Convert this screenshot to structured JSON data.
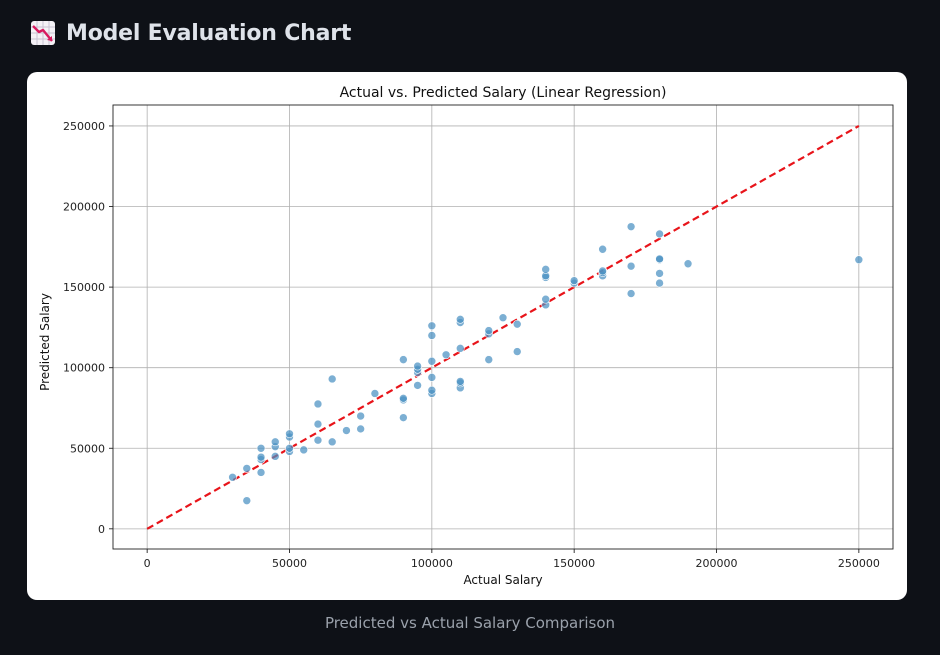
{
  "header": {
    "title": "Model Evaluation Chart",
    "icon": "chart-decreasing-icon"
  },
  "caption": "Predicted vs Actual Salary Comparison",
  "colors": {
    "page_background": "#0e1117",
    "card_background": "#ffffff",
    "points": "#4a90c2",
    "reference_line": "#e8141a",
    "grid": "#b0b0b0"
  },
  "chart_data": {
    "type": "scatter",
    "title": "Actual vs. Predicted Salary (Linear Regression)",
    "xlabel": "Actual Salary",
    "ylabel": "Predicted Salary",
    "xlim": [
      -12000,
      262000
    ],
    "ylim": [
      -12500,
      263000
    ],
    "xticks": [
      0,
      50000,
      100000,
      150000,
      200000,
      250000
    ],
    "yticks": [
      0,
      50000,
      100000,
      150000,
      200000,
      250000
    ],
    "grid": true,
    "reference_line": {
      "from": [
        0,
        0
      ],
      "to": [
        250000,
        250000
      ],
      "style": "dashed"
    },
    "points": [
      [
        30000,
        32000
      ],
      [
        35000,
        37500
      ],
      [
        35000,
        17500
      ],
      [
        40000,
        35000
      ],
      [
        40000,
        43000
      ],
      [
        40000,
        44500
      ],
      [
        40000,
        50000
      ],
      [
        45000,
        45000
      ],
      [
        45000,
        51000
      ],
      [
        45000,
        54000
      ],
      [
        50000,
        48000
      ],
      [
        50000,
        50000
      ],
      [
        50000,
        57000
      ],
      [
        50000,
        59000
      ],
      [
        55000,
        49000
      ],
      [
        60000,
        55000
      ],
      [
        60000,
        65000
      ],
      [
        60000,
        77500
      ],
      [
        65000,
        54000
      ],
      [
        65000,
        93000
      ],
      [
        70000,
        61000
      ],
      [
        75000,
        62000
      ],
      [
        75000,
        70000
      ],
      [
        80000,
        84000
      ],
      [
        90000,
        69000
      ],
      [
        90000,
        80000
      ],
      [
        90000,
        81000
      ],
      [
        90000,
        105000
      ],
      [
        95000,
        89000
      ],
      [
        95000,
        97000
      ],
      [
        95000,
        99000
      ],
      [
        95000,
        101000
      ],
      [
        100000,
        84000
      ],
      [
        100000,
        86000
      ],
      [
        100000,
        94000
      ],
      [
        100000,
        104000
      ],
      [
        100000,
        120000
      ],
      [
        100000,
        126000
      ],
      [
        105000,
        108000
      ],
      [
        110000,
        87500
      ],
      [
        110000,
        90500
      ],
      [
        110000,
        91500
      ],
      [
        110000,
        112000
      ],
      [
        110000,
        128000
      ],
      [
        110000,
        130000
      ],
      [
        120000,
        105000
      ],
      [
        120000,
        121000
      ],
      [
        120000,
        123000
      ],
      [
        125000,
        131000
      ],
      [
        130000,
        110000
      ],
      [
        130000,
        127000
      ],
      [
        140000,
        139000
      ],
      [
        140000,
        142500
      ],
      [
        140000,
        156000
      ],
      [
        140000,
        157000
      ],
      [
        140000,
        161000
      ],
      [
        150000,
        152500
      ],
      [
        150000,
        154000
      ],
      [
        160000,
        157000
      ],
      [
        160000,
        159000
      ],
      [
        160000,
        160000
      ],
      [
        160000,
        173500
      ],
      [
        170000,
        146000
      ],
      [
        170000,
        163000
      ],
      [
        170000,
        187500
      ],
      [
        180000,
        152500
      ],
      [
        180000,
        158500
      ],
      [
        180000,
        167000
      ],
      [
        180000,
        167500
      ],
      [
        180000,
        183000
      ],
      [
        190000,
        164500
      ],
      [
        250000,
        167000
      ]
    ]
  }
}
